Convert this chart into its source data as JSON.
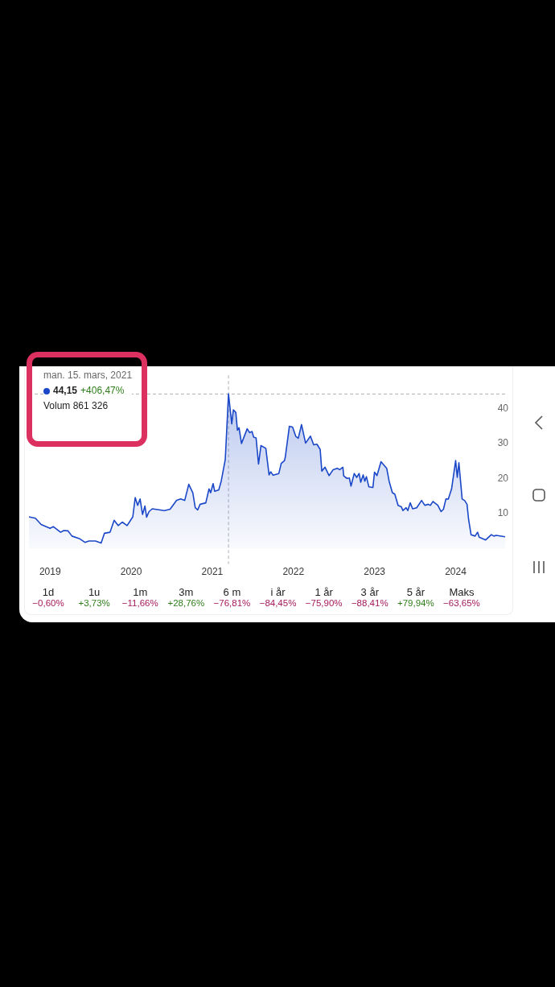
{
  "chart_data": [
    {
      "type": "area",
      "x": [
        2018.74,
        2018.82,
        2018.89,
        2019.0,
        2019.04,
        2019.13,
        2019.17,
        2019.22,
        2019.27,
        2019.36,
        2019.43,
        2019.48,
        2019.56,
        2019.63,
        2019.67,
        2019.74,
        2019.79,
        2019.84,
        2019.89,
        2019.95,
        2020.02,
        2020.05,
        2020.08,
        2020.11,
        2020.14,
        2020.17,
        2020.19,
        2020.22,
        2020.26,
        2020.41,
        2020.48,
        2020.56,
        2020.61,
        2020.66,
        2020.71,
        2020.76,
        2020.79,
        2020.82,
        2020.85,
        2020.92,
        2020.96,
        2020.98,
        2021.01,
        2021.03,
        2021.08,
        2021.11,
        2021.16,
        2021.2,
        2021.24,
        2021.26,
        2021.29,
        2021.31,
        2021.33,
        2021.36,
        2021.43,
        2021.46,
        2021.49,
        2021.51,
        2021.54,
        2021.57,
        2021.6,
        2021.66,
        2021.7,
        2021.72,
        2021.75,
        2021.82,
        2021.85,
        2021.89,
        2021.9,
        2021.95,
        2021.99,
        2022.03,
        2022.06,
        2022.1,
        2022.15,
        2022.21,
        2022.25,
        2022.29,
        2022.33,
        2022.35,
        2022.39,
        2022.44,
        2022.49,
        2022.54,
        2022.57,
        2022.61,
        2022.62,
        2022.66,
        2022.69,
        2022.71,
        2022.75,
        2022.78,
        2022.81,
        2022.83,
        2022.86,
        2022.88,
        2022.9,
        2022.93,
        2022.98,
        2023.0,
        2023.03,
        2023.08,
        2023.15,
        2023.18,
        2023.22,
        2023.25,
        2023.29,
        2023.33,
        2023.35,
        2023.39,
        2023.41,
        2023.44,
        2023.47,
        2023.52,
        2023.58,
        2023.62,
        2023.66,
        2023.69,
        2023.72,
        2023.78,
        2023.82,
        2023.85,
        2023.88,
        2023.91,
        2023.95,
        2024.0,
        2024.02,
        2024.04,
        2024.08,
        2024.11,
        2024.14,
        2024.16,
        2024.19,
        2024.24,
        2024.27,
        2024.29,
        2024.37,
        2024.44,
        2024.47,
        2024.5,
        2024.61
      ],
      "series": [
        {
          "color": "#1a47c8",
          "values": [
            9.0,
            8.6,
            6.8,
            5.7,
            6.2,
            4.6,
            5.1,
            5.0,
            3.5,
            2.8,
            1.7,
            2.1,
            2.1,
            1.5,
            4.3,
            4.6,
            8.0,
            6.5,
            7.5,
            6.5,
            9.0,
            14.5,
            12.3,
            14.1,
            9.7,
            12.1,
            8.9,
            10.5,
            11.3,
            10.8,
            11.2,
            13.7,
            14.1,
            13.7,
            18.3,
            15.9,
            11.6,
            11.0,
            12.6,
            13.0,
            17.0,
            15.9,
            18.5,
            16.3,
            16.7,
            19.2,
            25.4,
            44.15,
            35.6,
            39.6,
            38.9,
            33.8,
            34.5,
            30.0,
            34.2,
            33.1,
            33.4,
            31.8,
            31.6,
            24.1,
            29.4,
            28.6,
            21.0,
            21.9,
            20.9,
            21.4,
            24.3,
            25.1,
            26.1,
            34.9,
            34.7,
            32.0,
            31.5,
            35.4,
            30.1,
            32.1,
            29.6,
            29.8,
            28.3,
            22.1,
            23.2,
            20.8,
            22.5,
            22.9,
            22.5,
            23.2,
            20.7,
            20.0,
            20.1,
            17.8,
            21.4,
            20.3,
            21.4,
            18.9,
            21.0,
            19.2,
            20.5,
            17.6,
            17.4,
            21.8,
            20.8,
            24.8,
            22.9,
            19.2,
            15.9,
            15.5,
            12.3,
            11.9,
            10.8,
            11.6,
            10.8,
            13.0,
            11.3,
            11.6,
            13.7,
            12.3,
            12.6,
            12.3,
            13.4,
            12.3,
            10.5,
            11.2,
            14.1,
            14.1,
            17.0,
            25.1,
            20.3,
            24.5,
            14.1,
            13.7,
            12.6,
            8.2,
            3.9,
            3.5,
            4.6,
            3.2,
            2.4,
            3.9,
            3.5,
            3.7,
            3.3
          ]
        }
      ],
      "xlim": [
        2018.74,
        2024.61
      ],
      "xticks": [
        2019,
        2020,
        2021,
        2022,
        2023,
        2024
      ],
      "ylim": [
        -4.5,
        49.5
      ],
      "yticks": [
        10,
        20,
        30,
        40
      ],
      "ref_lines": [
        {
          "axis": "x",
          "value": 2021.2,
          "color": "#b0b0b8",
          "line_style": "dashed"
        },
        {
          "axis": "y",
          "value": 44.15,
          "color": "#b0b0b8",
          "line_style": "dashed"
        }
      ],
      "annotations": [
        "man. 15. mars, 2021",
        "44,15",
        "+406,47%",
        "Volum 861 326"
      ]
    },
    {
      "type": "other",
      "categories": [
        "1d",
        "1u",
        "1m",
        "3m",
        "6 m",
        "i år",
        "1 år",
        "3 år",
        "5 år",
        "Maks"
      ],
      "value_labels": [
        "−0,60%",
        "+3,73%",
        "−11,66%",
        "+28,76%",
        "−76,81%",
        "−84,45%",
        "−75,90%",
        "−88,41%",
        "+79,94%",
        "−63,65%"
      ],
      "colors": [
        "#a3195b",
        "#2e7d1a",
        "#a3195b",
        "#2e7d1a",
        "#a3195b",
        "#a3195b",
        "#a3195b",
        "#a3195b",
        "#2e7d1a",
        "#a3195b"
      ]
    }
  ]
}
